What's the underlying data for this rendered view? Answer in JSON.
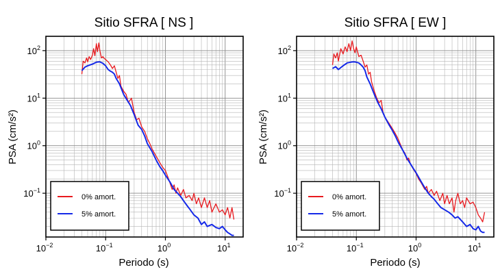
{
  "chart_data": [
    {
      "type": "line",
      "title": "Sitio SFRA [ NS ]",
      "xlabel": "Periodo (s)",
      "ylabel": "PSA (cm/s²)",
      "x_scale": "log",
      "y_scale": "log",
      "xlim": [
        0.01,
        20
      ],
      "ylim": [
        0.012,
        200
      ],
      "x_ticks": [
        {
          "value": 0.01,
          "base": "10",
          "exp": "−2"
        },
        {
          "value": 0.1,
          "base": "10",
          "exp": "−1"
        },
        {
          "value": 1,
          "base": "10",
          "exp": "0"
        },
        {
          "value": 10,
          "base": "10",
          "exp": "1"
        }
      ],
      "y_ticks": [
        {
          "value": 0.1,
          "base": "10",
          "exp": "−1"
        },
        {
          "value": 1,
          "base": "10",
          "exp": "0"
        },
        {
          "value": 10,
          "base": "10",
          "exp": "1"
        },
        {
          "value": 100,
          "base": "10",
          "exp": "2"
        }
      ],
      "grid": true,
      "legend_position": "bottom-left",
      "series": [
        {
          "name": "0% amort.",
          "color": "#e8191e",
          "points": [
            [
              0.04,
              32
            ],
            [
              0.042,
              60
            ],
            [
              0.045,
              55
            ],
            [
              0.048,
              70
            ],
            [
              0.05,
              58
            ],
            [
              0.053,
              75
            ],
            [
              0.056,
              65
            ],
            [
              0.06,
              80
            ],
            [
              0.063,
              110
            ],
            [
              0.066,
              78
            ],
            [
              0.07,
              140
            ],
            [
              0.073,
              95
            ],
            [
              0.077,
              145
            ],
            [
              0.08,
              100
            ],
            [
              0.085,
              70
            ],
            [
              0.09,
              75
            ],
            [
              0.095,
              68
            ],
            [
              0.1,
              65
            ],
            [
              0.11,
              58
            ],
            [
              0.12,
              50
            ],
            [
              0.13,
              42
            ],
            [
              0.14,
              48
            ],
            [
              0.15,
              35
            ],
            [
              0.16,
              26
            ],
            [
              0.17,
              30
            ],
            [
              0.18,
              18
            ],
            [
              0.2,
              14
            ],
            [
              0.22,
              12
            ],
            [
              0.24,
              8
            ],
            [
              0.27,
              10
            ],
            [
              0.3,
              5
            ],
            [
              0.33,
              3.5
            ],
            [
              0.36,
              3.8
            ],
            [
              0.4,
              2.5
            ],
            [
              0.45,
              2.0
            ],
            [
              0.5,
              1.4
            ],
            [
              0.55,
              1.1
            ],
            [
              0.6,
              0.85
            ],
            [
              0.7,
              0.6
            ],
            [
              0.8,
              0.45
            ],
            [
              0.9,
              0.35
            ],
            [
              1.0,
              0.3
            ],
            [
              1.1,
              0.22
            ],
            [
              1.2,
              0.16
            ],
            [
              1.3,
              0.12
            ],
            [
              1.4,
              0.15
            ],
            [
              1.5,
              0.1
            ],
            [
              1.6,
              0.13
            ],
            [
              1.8,
              0.09
            ],
            [
              2.0,
              0.12
            ],
            [
              2.2,
              0.08
            ],
            [
              2.5,
              0.09
            ],
            [
              2.8,
              0.07
            ],
            [
              3.0,
              0.1
            ],
            [
              3.3,
              0.06
            ],
            [
              3.6,
              0.08
            ],
            [
              4.0,
              0.05
            ],
            [
              4.5,
              0.08
            ],
            [
              5.0,
              0.05
            ],
            [
              5.5,
              0.07
            ],
            [
              6.0,
              0.04
            ],
            [
              7.0,
              0.06
            ],
            [
              8.0,
              0.04
            ],
            [
              9.0,
              0.045
            ],
            [
              10.0,
              0.035
            ],
            [
              11.0,
              0.05
            ],
            [
              12.0,
              0.03
            ],
            [
              13.0,
              0.05
            ],
            [
              14.0,
              0.028
            ]
          ]
        },
        {
          "name": "5% amort.",
          "color": "#1428e8",
          "points": [
            [
              0.04,
              38
            ],
            [
              0.045,
              45
            ],
            [
              0.05,
              48
            ],
            [
              0.06,
              52
            ],
            [
              0.07,
              57
            ],
            [
              0.08,
              58
            ],
            [
              0.09,
              54
            ],
            [
              0.1,
              48
            ],
            [
              0.11,
              40
            ],
            [
              0.12,
              37
            ],
            [
              0.13,
              35
            ],
            [
              0.14,
              32
            ],
            [
              0.15,
              26
            ],
            [
              0.17,
              20
            ],
            [
              0.2,
              12
            ],
            [
              0.23,
              9
            ],
            [
              0.26,
              7
            ],
            [
              0.3,
              4.5
            ],
            [
              0.35,
              2.7
            ],
            [
              0.4,
              2.2
            ],
            [
              0.45,
              1.6
            ],
            [
              0.5,
              1.1
            ],
            [
              0.6,
              0.75
            ],
            [
              0.7,
              0.5
            ],
            [
              0.8,
              0.37
            ],
            [
              0.9,
              0.3
            ],
            [
              1.0,
              0.24
            ],
            [
              1.2,
              0.17
            ],
            [
              1.4,
              0.12
            ],
            [
              1.6,
              0.1
            ],
            [
              1.8,
              0.085
            ],
            [
              2.0,
              0.07
            ],
            [
              2.3,
              0.055
            ],
            [
              2.6,
              0.045
            ],
            [
              3.0,
              0.035
            ],
            [
              3.5,
              0.03
            ],
            [
              4.0,
              0.022
            ],
            [
              4.5,
              0.025
            ],
            [
              5.0,
              0.02
            ],
            [
              6.0,
              0.022
            ],
            [
              7.0,
              0.019
            ],
            [
              8.0,
              0.018
            ],
            [
              9.0,
              0.02
            ],
            [
              10.0,
              0.017
            ],
            [
              11.0,
              0.015
            ],
            [
              12.0,
              0.014
            ],
            [
              13.0,
              0.013
            ],
            [
              14.0,
              0.013
            ]
          ]
        }
      ]
    },
    {
      "type": "line",
      "title": "Sitio SFRA [ EW ]",
      "xlabel": "Periodo (s)",
      "ylabel": "PSA (cm/s²)",
      "x_scale": "log",
      "y_scale": "log",
      "xlim": [
        0.01,
        20
      ],
      "ylim": [
        0.012,
        200
      ],
      "x_ticks": [
        {
          "value": 0.01,
          "base": "10",
          "exp": "−2"
        },
        {
          "value": 0.1,
          "base": "10",
          "exp": "−1"
        },
        {
          "value": 1,
          "base": "10",
          "exp": "0"
        },
        {
          "value": 10,
          "base": "10",
          "exp": "1"
        }
      ],
      "y_ticks": [
        {
          "value": 0.1,
          "base": "10",
          "exp": "−1"
        },
        {
          "value": 1,
          "base": "10",
          "exp": "0"
        },
        {
          "value": 10,
          "base": "10",
          "exp": "1"
        },
        {
          "value": 100,
          "base": "10",
          "exp": "2"
        }
      ],
      "grid": true,
      "legend_position": "bottom-left",
      "series": [
        {
          "name": "0% amort.",
          "color": "#e8191e",
          "points": [
            [
              0.04,
              50
            ],
            [
              0.042,
              85
            ],
            [
              0.045,
              70
            ],
            [
              0.048,
              90
            ],
            [
              0.05,
              60
            ],
            [
              0.055,
              110
            ],
            [
              0.06,
              85
            ],
            [
              0.065,
              120
            ],
            [
              0.07,
              95
            ],
            [
              0.075,
              140
            ],
            [
              0.08,
              100
            ],
            [
              0.085,
              160
            ],
            [
              0.09,
              110
            ],
            [
              0.095,
              90
            ],
            [
              0.1,
              120
            ],
            [
              0.11,
              75
            ],
            [
              0.12,
              80
            ],
            [
              0.13,
              60
            ],
            [
              0.14,
              45
            ],
            [
              0.15,
              50
            ],
            [
              0.16,
              32
            ],
            [
              0.17,
              35
            ],
            [
              0.18,
              22
            ],
            [
              0.2,
              14
            ],
            [
              0.22,
              10
            ],
            [
              0.24,
              8
            ],
            [
              0.26,
              9
            ],
            [
              0.28,
              5
            ],
            [
              0.3,
              4
            ],
            [
              0.35,
              3
            ],
            [
              0.4,
              2.3
            ],
            [
              0.45,
              1.8
            ],
            [
              0.5,
              1.4
            ],
            [
              0.55,
              1.05
            ],
            [
              0.6,
              0.8
            ],
            [
              0.65,
              0.7
            ],
            [
              0.7,
              0.5
            ],
            [
              0.75,
              0.55
            ],
            [
              0.8,
              0.42
            ],
            [
              0.9,
              0.32
            ],
            [
              1.0,
              0.26
            ],
            [
              1.1,
              0.2
            ],
            [
              1.2,
              0.17
            ],
            [
              1.4,
              0.12
            ],
            [
              1.5,
              0.14
            ],
            [
              1.6,
              0.1
            ],
            [
              1.8,
              0.12
            ],
            [
              2.0,
              0.09
            ],
            [
              2.2,
              0.11
            ],
            [
              2.5,
              0.07
            ],
            [
              2.8,
              0.1
            ],
            [
              3.0,
              0.06
            ],
            [
              3.3,
              0.09
            ],
            [
              3.6,
              0.06
            ],
            [
              4.0,
              0.08
            ],
            [
              4.3,
              0.04
            ],
            [
              4.6,
              0.07
            ],
            [
              5.0,
              0.1
            ],
            [
              5.5,
              0.06
            ],
            [
              6.0,
              0.07
            ],
            [
              6.5,
              0.05
            ],
            [
              7.0,
              0.08
            ],
            [
              8.0,
              0.06
            ],
            [
              9.0,
              0.065
            ],
            [
              10.0,
              0.05
            ],
            [
              11.0,
              0.035
            ],
            [
              12.0,
              0.03
            ],
            [
              13.0,
              0.025
            ],
            [
              14.0,
              0.04
            ]
          ]
        },
        {
          "name": "5% amort.",
          "color": "#1428e8",
          "points": [
            [
              0.04,
              42
            ],
            [
              0.045,
              46
            ],
            [
              0.05,
              40
            ],
            [
              0.06,
              48
            ],
            [
              0.07,
              55
            ],
            [
              0.08,
              57
            ],
            [
              0.09,
              58
            ],
            [
              0.1,
              57
            ],
            [
              0.11,
              55
            ],
            [
              0.12,
              50
            ],
            [
              0.13,
              45
            ],
            [
              0.14,
              38
            ],
            [
              0.15,
              28
            ],
            [
              0.17,
              20
            ],
            [
              0.2,
              12
            ],
            [
              0.23,
              8
            ],
            [
              0.26,
              6
            ],
            [
              0.3,
              4
            ],
            [
              0.35,
              2.8
            ],
            [
              0.4,
              2.1
            ],
            [
              0.45,
              1.6
            ],
            [
              0.5,
              1.2
            ],
            [
              0.6,
              0.8
            ],
            [
              0.7,
              0.55
            ],
            [
              0.8,
              0.42
            ],
            [
              0.9,
              0.33
            ],
            [
              1.0,
              0.27
            ],
            [
              1.2,
              0.18
            ],
            [
              1.4,
              0.13
            ],
            [
              1.6,
              0.1
            ],
            [
              1.8,
              0.085
            ],
            [
              2.0,
              0.075
            ],
            [
              2.3,
              0.06
            ],
            [
              2.6,
              0.05
            ],
            [
              3.0,
              0.045
            ],
            [
              3.5,
              0.04
            ],
            [
              4.0,
              0.035
            ],
            [
              4.5,
              0.03
            ],
            [
              5.0,
              0.032
            ],
            [
              6.0,
              0.025
            ],
            [
              7.0,
              0.02
            ],
            [
              8.0,
              0.022
            ],
            [
              9.0,
              0.018
            ],
            [
              10.0,
              0.017
            ],
            [
              11.0,
              0.02
            ],
            [
              12.0,
              0.016
            ],
            [
              13.0,
              0.015
            ],
            [
              14.0,
              0.015
            ]
          ]
        }
      ]
    }
  ]
}
